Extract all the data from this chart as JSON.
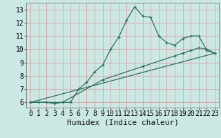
{
  "title": "",
  "xlabel": "Humidex (Indice chaleur)",
  "bg_color": "#cce8e4",
  "line_color": "#2a6e5e",
  "grid_color_v": "#d9a0a0",
  "grid_color_h": "#d9a0a0",
  "xlim": [
    -0.5,
    23.5
  ],
  "ylim": [
    5.6,
    13.5
  ],
  "xticks": [
    0,
    1,
    2,
    3,
    4,
    5,
    6,
    7,
    8,
    9,
    10,
    11,
    12,
    13,
    14,
    15,
    16,
    17,
    18,
    19,
    20,
    21,
    22,
    23
  ],
  "yticks": [
    6,
    7,
    8,
    9,
    10,
    11,
    12,
    13
  ],
  "curve1_x": [
    0,
    1,
    2,
    3,
    4,
    5,
    6,
    7,
    8,
    9,
    10,
    11,
    12,
    13,
    14,
    15,
    16,
    17,
    18,
    19,
    20,
    21,
    22,
    23
  ],
  "curve1_y": [
    6.0,
    6.0,
    6.0,
    5.9,
    6.0,
    6.0,
    7.0,
    7.5,
    8.3,
    8.8,
    10.0,
    10.9,
    12.2,
    13.2,
    12.5,
    12.4,
    11.0,
    10.5,
    10.3,
    10.8,
    11.0,
    11.0,
    9.9,
    9.7
  ],
  "curve2_x": [
    0,
    23
  ],
  "curve2_y": [
    6.0,
    9.7
  ],
  "curve3_x": [
    0,
    4,
    9,
    14,
    18,
    19,
    20,
    21,
    22,
    23
  ],
  "curve3_y": [
    6.0,
    6.0,
    7.7,
    8.7,
    9.5,
    9.7,
    9.9,
    10.1,
    10.0,
    9.7
  ],
  "markersize": 3.5,
  "linewidth": 0.9,
  "xlabel_fontsize": 8,
  "tick_fontsize": 7
}
